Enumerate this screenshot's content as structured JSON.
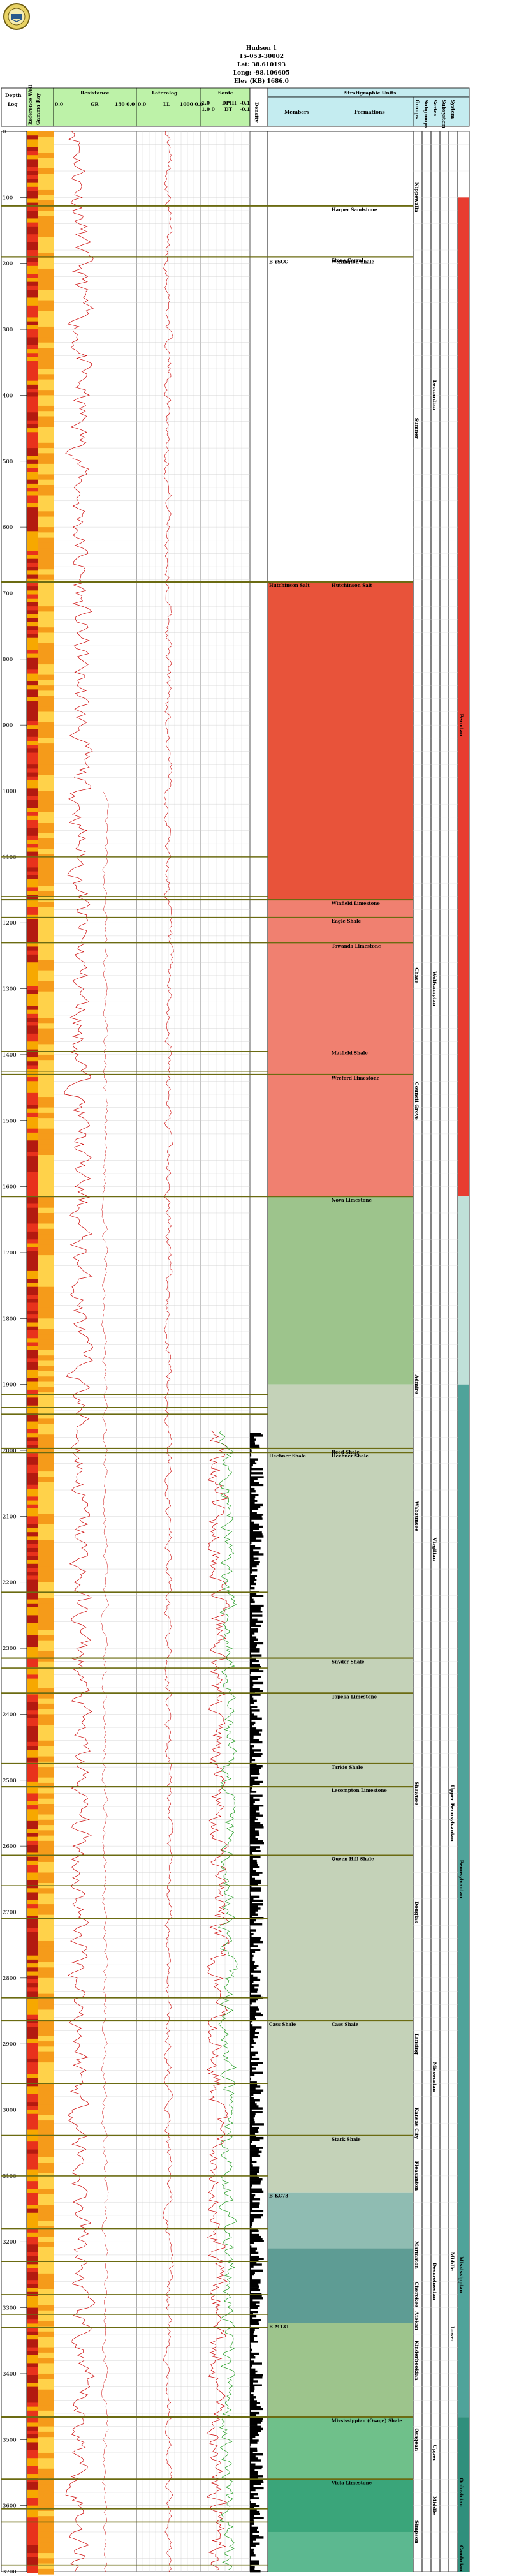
{
  "header": {
    "well_name": "Hudson 1",
    "well_id": "15-053-30002",
    "lat": "Lat: 38.610193",
    "long": "Long: -98.106605",
    "elev": "Elev (KB) 1686.0"
  },
  "columns": {
    "depth": "Depth",
    "log": "Log",
    "ref_well": "Reference Well",
    "gamma": "Gamma Ray",
    "resistance": "Resistance",
    "lateralog": "Lateralog",
    "sonic": "Sonic",
    "density": "Density",
    "strat_units": "Stratigraphic Units",
    "members": "Members",
    "formations": "Formations",
    "groups": "Groups",
    "subgroups": "Subgroups",
    "series": "Series",
    "subsystem": "Subsystem",
    "system": "System"
  },
  "scales": {
    "res_min": "0.0",
    "res_mid": "GR",
    "res_max": "150 0.0",
    "lat_min": "0.0",
    "lat_mid": "LL",
    "lat_max": "1000 0.0",
    "sonic_min": "1.0",
    "sonic_mid": "DPHI",
    "sonic_max": "-0.1",
    "sonic2_min": "1.0 0",
    "sonic2_mid": "DT",
    "sonic2_max": "-0.1"
  },
  "depth_ticks": [
    "0",
    "100",
    "200",
    "300",
    "400",
    "500",
    "600",
    "700",
    "800",
    "900",
    "1000",
    "1100",
    "1200",
    "1300",
    "1400",
    "1500",
    "1600",
    "1700",
    "1800",
    "1900",
    "2000",
    "2100",
    "2200",
    "2300",
    "2400",
    "2500",
    "2600",
    "2700",
    "2800",
    "2900",
    "3000",
    "3100",
    "3200",
    "3300",
    "3400",
    "3500",
    "3600",
    "3700"
  ],
  "formations": [
    {
      "label": "Harper Sandstone",
      "depth": 113
    },
    {
      "label": "Stone Corral",
      "depth": 190
    },
    {
      "label": "Hutchinson Salt",
      "depth": 683
    },
    {
      "label": "Winfield Limestone",
      "depth": 1165
    },
    {
      "label": "Eagle Shale",
      "depth": 1192
    },
    {
      "label": "Towanda Limestone",
      "depth": 1230
    },
    {
      "label": "Wreford Limestone",
      "depth": 1430
    },
    {
      "label": "Nova Limestone",
      "depth": 1615
    },
    {
      "label": "Reed Shale",
      "depth": 1997
    },
    {
      "label": "Heebner Shale",
      "depth": 2003
    },
    {
      "label": "Snyder Shale",
      "depth": 2315
    },
    {
      "label": "Topeka Limestone",
      "depth": 2368
    },
    {
      "label": "Tarkio Shale",
      "depth": 2475
    },
    {
      "label": "Lecompton Limestone",
      "depth": 2510
    },
    {
      "label": "Queen Hill Shale",
      "depth": 2614
    },
    {
      "label": "Cass Shale",
      "depth": 2865
    },
    {
      "label": "Stark Shale",
      "depth": 3039
    },
    {
      "label": "Mississippian (Osage) Shale",
      "depth": 3466
    },
    {
      "label": "Viola Limestone",
      "depth": 3560
    }
  ],
  "members": [
    {
      "label": "B-YSCC",
      "depth": 192
    },
    {
      "label": "Heebner Shale",
      "depth": 2003
    },
    {
      "label": "Cass Shale",
      "depth": 2865
    },
    {
      "label": "B-KC73",
      "depth": 3125
    },
    {
      "label": "B-M131",
      "depth": 3323
    },
    {
      "label": "Hutchinson Salt",
      "depth": 683
    }
  ],
  "formations2": [
    {
      "label": "Wellington Shale",
      "depth": 192
    },
    {
      "label": "Matfield Shale",
      "depth": 1392
    }
  ],
  "groups": [
    {
      "label": "Nippewalla",
      "depth": 100
    },
    {
      "label": "Sumner",
      "depth": 450
    },
    {
      "label": "Chase",
      "depth": 1280
    },
    {
      "label": "Council Grove",
      "depth": 1470
    },
    {
      "label": "Admire",
      "depth": 1900
    },
    {
      "label": "Wabaunsee",
      "depth": 2100
    },
    {
      "label": "Shawnee",
      "depth": 2520
    },
    {
      "label": "Douglas",
      "depth": 2700
    },
    {
      "label": "Lansing",
      "depth": 2900
    },
    {
      "label": "Kansas City",
      "depth": 3020
    },
    {
      "label": "Pleasanton",
      "depth": 3100
    },
    {
      "label": "Marmaton",
      "depth": 3220
    },
    {
      "label": "Cherokee",
      "depth": 3280
    },
    {
      "label": "Atokan",
      "depth": 3320
    },
    {
      "label": "Kinderhookian",
      "depth": 3380
    },
    {
      "label": "Osagean",
      "depth": 3500
    },
    {
      "label": "Simpson",
      "depth": 3640
    }
  ],
  "series": [
    {
      "label": "Leonardian",
      "depth": 400
    },
    {
      "label": "Wolfcampian",
      "depth": 1300
    },
    {
      "label": "Virgilian",
      "depth": 2150
    },
    {
      "label": "Missourian",
      "depth": 2950
    },
    {
      "label": "Desmoinesian",
      "depth": 3260
    },
    {
      "label": "Upper",
      "depth": 3520
    },
    {
      "label": "Middle",
      "depth": 3600
    }
  ],
  "subsystem": [
    {
      "label": "Upper Pennsylvanian",
      "depth": 2550
    },
    {
      "label": "Middle",
      "depth": 3230
    },
    {
      "label": "Lower",
      "depth": 3340
    }
  ],
  "system": [
    {
      "label": "Permian",
      "depth": 900
    },
    {
      "label": "Pennsylvanian",
      "depth": 2650
    },
    {
      "label": "Mississippian",
      "depth": 3250
    },
    {
      "label": "Ordovician",
      "depth": 3580
    },
    {
      "label": "Cambrian",
      "depth": 3680
    }
  ],
  "colors": {
    "header_blue": "#c4ecf0",
    "header_green": "#bdf2a8",
    "permian_red": "#e8533a",
    "lower_permian": "#f08070",
    "penn_green": "#9dc48c",
    "penn_gray": "#c4d2b8",
    "penn_teal": "#8fbcb2",
    "miss_teal": "#5e9c94",
    "ord_green": "#3aa57a",
    "camb_teal": "#2f8f7c",
    "system_red": "#e83c30",
    "system_teal": "#4fa39a"
  }
}
